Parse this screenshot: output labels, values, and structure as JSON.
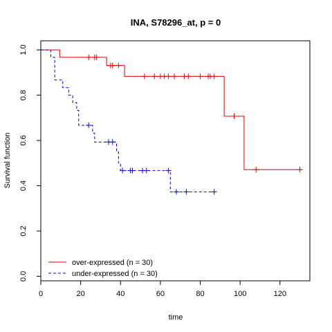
{
  "chart_data": {
    "type": "line",
    "title": "INA, S78296_at, p = 0",
    "xlabel": "time",
    "ylabel": "Survival function",
    "xlim": [
      0,
      135
    ],
    "ylim": [
      -0.02,
      1.04
    ],
    "xticks": [
      0,
      20,
      40,
      60,
      80,
      100,
      120
    ],
    "yticks": [
      0.0,
      0.2,
      0.4,
      0.6,
      0.8,
      1.0
    ],
    "ytick_labels": [
      "0.0",
      "0.2",
      "0.4",
      "0.6",
      "0.8",
      "1.0"
    ],
    "grid": false,
    "legend_position": "bottom-left",
    "series": [
      {
        "name": "over-expressed (n = 30)",
        "color": "#dd0000",
        "dash": "solid",
        "steps": [
          [
            0,
            1.0
          ],
          [
            9.5,
            0.967
          ],
          [
            33,
            0.931
          ],
          [
            42,
            0.883
          ],
          [
            92,
            0.707
          ],
          [
            102,
            0.471
          ],
          [
            131,
            0.471
          ]
        ],
        "censored": [
          [
            24,
            0.967
          ],
          [
            27,
            0.967
          ],
          [
            28,
            0.967
          ],
          [
            35,
            0.931
          ],
          [
            36,
            0.931
          ],
          [
            39,
            0.931
          ],
          [
            52,
            0.883
          ],
          [
            57,
            0.883
          ],
          [
            60,
            0.883
          ],
          [
            62,
            0.883
          ],
          [
            64,
            0.883
          ],
          [
            67,
            0.883
          ],
          [
            72,
            0.883
          ],
          [
            74,
            0.883
          ],
          [
            80,
            0.883
          ],
          [
            84,
            0.883
          ],
          [
            85,
            0.883
          ],
          [
            87,
            0.883
          ],
          [
            97,
            0.707
          ],
          [
            108,
            0.471
          ],
          [
            130,
            0.471
          ]
        ]
      },
      {
        "name": "under-expressed (n = 30)",
        "color": "#0000dd",
        "dash": "dashed",
        "steps": [
          [
            0,
            1.0
          ],
          [
            5,
            0.967
          ],
          [
            7,
            0.867
          ],
          [
            11,
            0.833
          ],
          [
            14,
            0.8
          ],
          [
            16,
            0.767
          ],
          [
            18,
            0.733
          ],
          [
            19,
            0.667
          ],
          [
            26,
            0.633
          ],
          [
            27,
            0.593
          ],
          [
            38,
            0.549
          ],
          [
            39,
            0.5
          ],
          [
            40,
            0.467
          ],
          [
            65,
            0.373
          ],
          [
            87,
            0.373
          ]
        ],
        "censored": [
          [
            24,
            0.667
          ],
          [
            34,
            0.593
          ],
          [
            36,
            0.593
          ],
          [
            41,
            0.467
          ],
          [
            45,
            0.467
          ],
          [
            46,
            0.467
          ],
          [
            51,
            0.467
          ],
          [
            53,
            0.467
          ],
          [
            64,
            0.467
          ],
          [
            68,
            0.373
          ],
          [
            73,
            0.373
          ],
          [
            87,
            0.373
          ]
        ]
      }
    ]
  }
}
